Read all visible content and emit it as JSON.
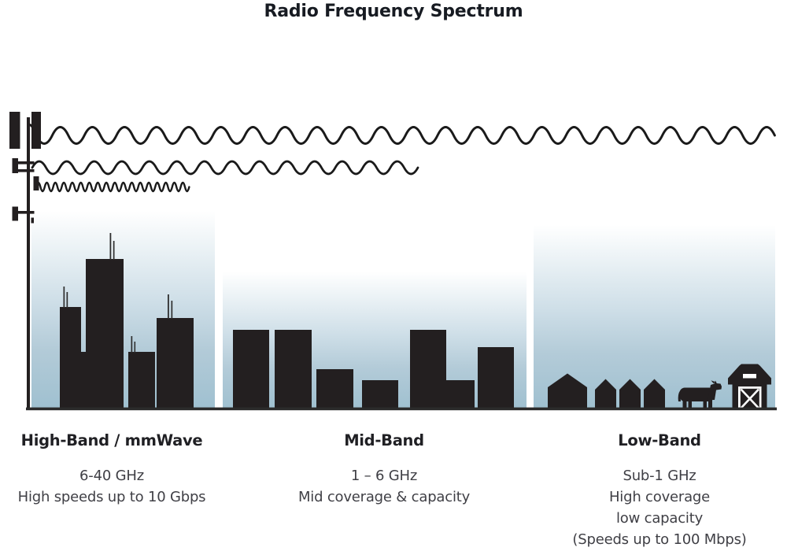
{
  "title": "Radio Frequency Spectrum",
  "bands": {
    "high": {
      "heading": "High-Band / mmWave",
      "lines": [
        "6-40 GHz",
        "High speeds up to 10 Gbps"
      ],
      "wave_frequency": "high",
      "scene": "dense city skyscrapers"
    },
    "mid": {
      "heading": "Mid-Band",
      "lines": [
        "1 – 6 GHz",
        "Mid coverage & capacity"
      ],
      "wave_frequency": "mid",
      "scene": "mid-rise town buildings"
    },
    "low": {
      "heading": "Low-Band",
      "lines": [
        "Sub-1 GHz",
        "High coverage",
        "low capacity",
        "(Speeds up to 100 Mbps)"
      ],
      "wave_frequency": "low",
      "scene": "rural houses, cow and barn"
    }
  },
  "icons": [
    "cell-tower-icon",
    "radio-wave-icon",
    "city-buildings-icon",
    "house-icon",
    "cow-icon",
    "barn-icon"
  ],
  "colors": {
    "silhouette": "#231f20",
    "wave": "#1a1a1a",
    "sky_bottom": "#9fc0d0",
    "sky_mid": "#cfdfe8",
    "ground": "#2b2b2b",
    "title_text": "#171b22",
    "heading_text": "#202024",
    "body_text": "#3f3f45"
  }
}
